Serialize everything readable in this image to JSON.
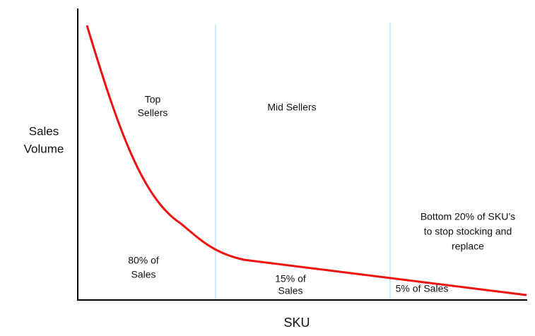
{
  "axes": {
    "y_label": [
      "Sales",
      "Volume"
    ],
    "x_label": "SKU"
  },
  "regions": [
    {
      "title": [
        "Top",
        "Sellers"
      ],
      "share": [
        "80% of",
        "Sales"
      ]
    },
    {
      "title": [
        "Mid Sellers"
      ],
      "share": [
        "15% of",
        "Sales"
      ]
    },
    {
      "title": [
        "Bottom 20% of SKU’s",
        "to stop stocking and",
        "replace"
      ],
      "share": [
        "5% of Sales"
      ]
    }
  ]
}
